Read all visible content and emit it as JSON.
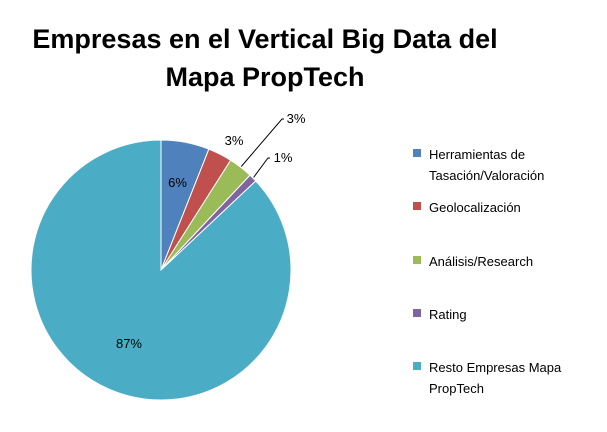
{
  "chart_data": {
    "type": "pie",
    "title": "Empresas en el Vertical Big Data del Mapa PropTech",
    "slices": [
      {
        "label": "Herramientas de Tasación/Valoración",
        "value": 6,
        "display": "6%",
        "color": "#4F81BD"
      },
      {
        "label": "Geolocalización",
        "value": 3,
        "display": "3%",
        "color": "#C0504D"
      },
      {
        "label": "Análisis/Research",
        "value": 3,
        "display": "3%",
        "color": "#9BBB59"
      },
      {
        "label": "Rating",
        "value": 1,
        "display": "1%",
        "color": "#8064A2"
      },
      {
        "label": "Resto Empresas Mapa PropTech",
        "value": 87,
        "display": "87%",
        "color": "#4BACC6"
      }
    ],
    "legend_position": "right"
  }
}
